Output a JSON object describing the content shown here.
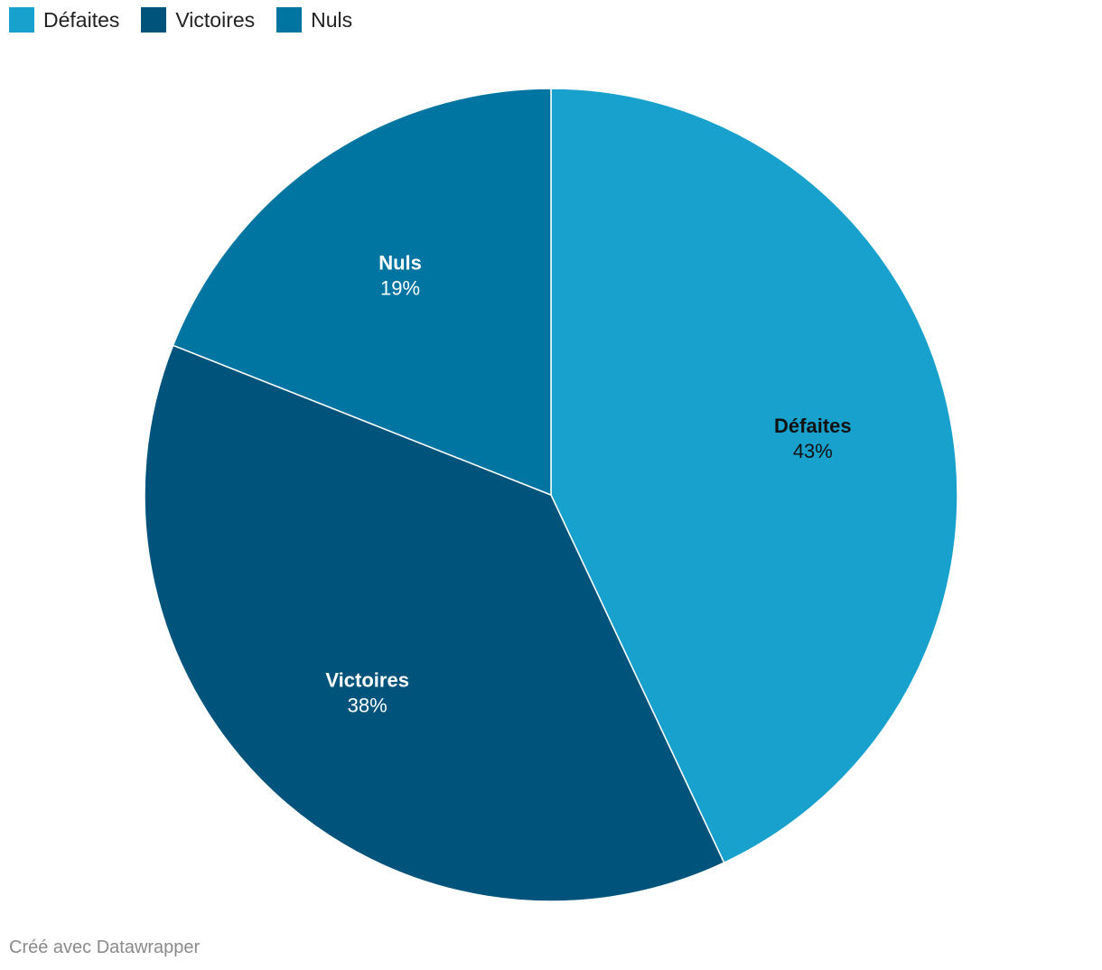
{
  "chart_data": {
    "type": "pie",
    "title": "",
    "slices": [
      {
        "label": "Défaites",
        "value": 43,
        "display": "43%",
        "color": "#18a1cd",
        "label_color": "#111111"
      },
      {
        "label": "Victoires",
        "value": 38,
        "display": "38%",
        "color": "#00537a",
        "label_color": "#ffffff"
      },
      {
        "label": "Nuls",
        "value": 19,
        "display": "19%",
        "color": "#0075a1",
        "label_color": "#ffffff"
      }
    ],
    "legend": [
      "Défaites",
      "Victoires",
      "Nuls"
    ],
    "legend_position": "top-left",
    "start_angle": "top",
    "direction": "clockwise",
    "unit": "%"
  },
  "footer": {
    "credit": "Créé avec Datawrapper"
  }
}
